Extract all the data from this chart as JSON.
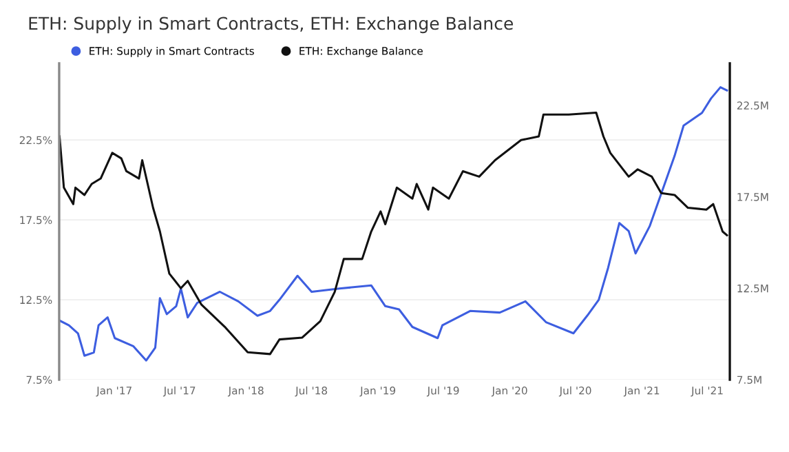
{
  "chart_data": {
    "type": "line",
    "title": "ETH: Supply in Smart Contracts, ETH: Exchange Balance",
    "legend": "top left",
    "grid": "y",
    "marker": "none",
    "line_style": "solid",
    "xlim": [
      "2016-08-01",
      "2021-09-01"
    ],
    "xticks": [
      {
        "value": "2017-01-01",
        "label": "Jan '17"
      },
      {
        "value": "2017-07-01",
        "label": "Jul '17"
      },
      {
        "value": "2018-01-01",
        "label": "Jan '18"
      },
      {
        "value": "2018-07-01",
        "label": "Jul '18"
      },
      {
        "value": "2019-01-01",
        "label": "Jan '19"
      },
      {
        "value": "2019-07-01",
        "label": "Jul '19"
      },
      {
        "value": "2020-01-01",
        "label": "Jan '20"
      },
      {
        "value": "2020-07-01",
        "label": "Jul '20"
      },
      {
        "value": "2021-01-01",
        "label": "Jan '21"
      },
      {
        "value": "2021-07-01",
        "label": "Jul '21"
      }
    ],
    "ylim": [
      7.5,
      27.3
    ],
    "yticks": [
      {
        "value": 7.5,
        "label": "7.5%"
      },
      {
        "value": 12.5,
        "label": "12.5%"
      },
      {
        "value": 17.5,
        "label": "17.5%"
      },
      {
        "value": 22.5,
        "label": "22.5%"
      }
    ],
    "y2lim": [
      7.5,
      24.8
    ],
    "y2ticks": [
      {
        "value": 7.5,
        "label": "7.5M"
      },
      {
        "value": 12.5,
        "label": "12.5M"
      },
      {
        "value": 17.5,
        "label": "17.5M"
      },
      {
        "value": 22.5,
        "label": "22.5M"
      }
    ],
    "series": [
      {
        "name": "ETH: Supply in Smart Contracts",
        "color": "#3d5ee0",
        "x": [
          "2016-08-02",
          "2016-08-28",
          "2016-09-22",
          "2016-10-10",
          "2016-11-05",
          "2016-11-18",
          "2016-12-13",
          "2017-01-02",
          "2017-02-22",
          "2017-03-30",
          "2017-04-24",
          "2017-05-07",
          "2017-05-26",
          "2017-06-21",
          "2017-07-04",
          "2017-07-23",
          "2017-08-18",
          "2017-10-20",
          "2017-12-10",
          "2018-02-01",
          "2018-03-08",
          "2018-04-03",
          "2018-05-23",
          "2018-07-01",
          "2018-09-16",
          "2018-12-13",
          "2019-01-21",
          "2019-02-28",
          "2019-04-06",
          "2019-06-15",
          "2019-06-28",
          "2019-09-13",
          "2019-12-04",
          "2020-02-13",
          "2020-04-10",
          "2020-06-25",
          "2020-08-02",
          "2020-09-03",
          "2020-09-29",
          "2020-10-30",
          "2020-11-25",
          "2020-12-14",
          "2021-01-22",
          "2021-04-01",
          "2021-04-26",
          "2021-06-16",
          "2021-07-11",
          "2021-08-06",
          "2021-08-24"
        ],
        "values": [
          11.2,
          10.9,
          10.4,
          9.0,
          9.2,
          10.9,
          11.4,
          10.1,
          9.6,
          8.7,
          9.5,
          12.6,
          11.6,
          12.1,
          13.2,
          11.4,
          12.3,
          13.0,
          12.4,
          11.5,
          11.8,
          12.5,
          14.0,
          13.0,
          13.2,
          13.4,
          12.1,
          11.9,
          10.8,
          10.1,
          10.9,
          11.8,
          11.7,
          12.4,
          11.1,
          10.4,
          11.5,
          12.5,
          14.5,
          17.3,
          16.8,
          15.4,
          17.1,
          21.5,
          23.4,
          24.2,
          25.1,
          25.8,
          25.6
        ]
      },
      {
        "name": "ETH: Exchange Balance",
        "color": "#111111",
        "axis": "y2",
        "x": [
          "2016-08-02",
          "2016-08-14",
          "2016-09-09",
          "2016-09-15",
          "2016-10-10",
          "2016-10-30",
          "2016-11-24",
          "2016-12-26",
          "2017-01-20",
          "2017-02-03",
          "2017-03-10",
          "2017-03-19",
          "2017-04-18",
          "2017-05-07",
          "2017-06-02",
          "2017-07-04",
          "2017-07-23",
          "2017-08-30",
          "2017-11-02",
          "2018-01-05",
          "2018-03-08",
          "2018-04-03",
          "2018-06-05",
          "2018-07-25",
          "2018-09-03",
          "2018-09-28",
          "2018-11-18",
          "2018-12-13",
          "2019-01-08",
          "2019-01-21",
          "2019-02-22",
          "2019-04-06",
          "2019-04-18",
          "2019-05-20",
          "2019-06-02",
          "2019-07-16",
          "2019-08-24",
          "2019-10-08",
          "2019-11-21",
          "2020-02-01",
          "2020-03-21",
          "2020-04-03",
          "2020-06-12",
          "2020-08-27",
          "2020-09-16",
          "2020-10-05",
          "2020-11-25",
          "2020-12-20",
          "2021-01-28",
          "2021-02-23",
          "2021-04-01",
          "2021-05-08",
          "2021-06-28",
          "2021-07-17",
          "2021-08-12",
          "2021-08-24"
        ],
        "values": [
          20.8,
          18.0,
          17.1,
          18.0,
          17.6,
          18.2,
          18.5,
          19.9,
          19.6,
          18.9,
          18.5,
          19.5,
          16.9,
          15.6,
          13.3,
          12.5,
          12.9,
          11.6,
          10.4,
          9.0,
          8.9,
          9.7,
          9.8,
          10.7,
          12.3,
          14.1,
          14.1,
          15.6,
          16.7,
          16.0,
          18.0,
          17.4,
          18.2,
          16.8,
          18.0,
          17.4,
          18.9,
          18.6,
          19.5,
          20.6,
          20.8,
          22.0,
          22.0,
          22.1,
          20.8,
          19.9,
          18.6,
          19.0,
          18.6,
          17.7,
          17.6,
          16.9,
          16.8,
          17.1,
          15.6,
          15.4
        ]
      }
    ]
  }
}
